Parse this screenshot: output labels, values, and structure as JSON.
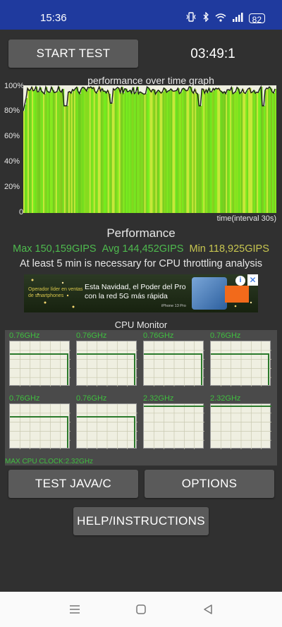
{
  "status_bar": {
    "time": "15:36",
    "battery": "82",
    "icons": [
      "vibrate-icon",
      "bluetooth-icon",
      "wifi-icon",
      "signal-icon",
      "battery-icon"
    ]
  },
  "controls": {
    "start_label": "START TEST",
    "timer": "03:49:1"
  },
  "graph": {
    "title": "performance over time graph",
    "y_ticks": [
      "100%",
      "80%",
      "60%",
      "40%",
      "20%",
      "0"
    ],
    "x_label": "time(interval 30s)",
    "colors": {
      "bar": "#7fe01f",
      "line": "#1a1a1a",
      "background": "#efefe1"
    }
  },
  "performance": {
    "title": "Performance",
    "max": "Max 150,159GIPS",
    "avg": "Avg 144,452GIPS",
    "min": "Min 118,925GIPS",
    "note": "At least 5 min is necessary for CPU throttling analysis"
  },
  "ad": {
    "small_text": "Operador líder en ventas de smartphones",
    "headline": "Esta Navidad, el Poder del Pro con la red 5G más rápida",
    "caption": "iPhone 13 Pro"
  },
  "cpu_monitor": {
    "title": "CPU Monitor",
    "cores": [
      {
        "label": "0.76GHz"
      },
      {
        "label": "0.76GHz"
      },
      {
        "label": "0.76GHz"
      },
      {
        "label": "0.76GHz"
      },
      {
        "label": "0.76GHz"
      },
      {
        "label": "0.76GHz"
      },
      {
        "label": "2.32GHz"
      },
      {
        "label": "2.32GHz"
      }
    ],
    "max_clock": "MAX CPU CLOCK:2.32GHz",
    "line_color": "#2b7a2b",
    "label_color": "#3fbf3f"
  },
  "buttons": {
    "test_java": "TEST JAVA/C",
    "options": "OPTIONS",
    "help": "HELP/INSTRUCTIONS"
  },
  "nav": [
    "menu-icon",
    "home-icon",
    "back-icon"
  ]
}
